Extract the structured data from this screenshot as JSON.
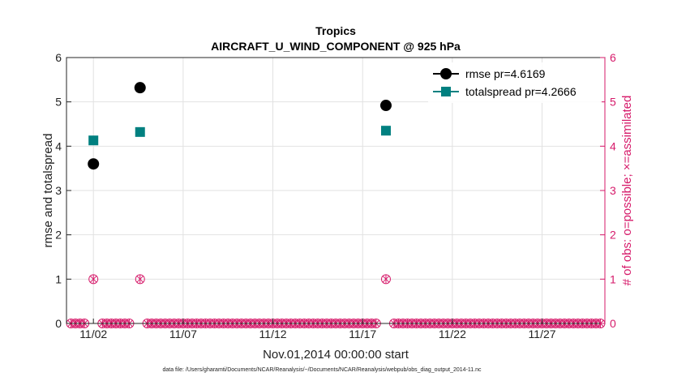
{
  "chart_data": {
    "type": "scatter",
    "title": "Tropics",
    "subtitle": "AIRCRAFT_U_WIND_COMPONENT @ 925 hPa",
    "xlabel": "Nov.01,2014 00:00:00 start",
    "ylabel": "rmse and totalspread",
    "ylabel_right": "# of obs: o=possible; ×=assimilated",
    "footer": "data file: /Users/gharamti/Documents/NCAR/Reanalysis/~/Documents/NCAR/Reanalysis/webpub/obs_diag_output_2014-11.nc",
    "xlim": [
      0.5,
      30.5
    ],
    "ylim": [
      0,
      6
    ],
    "ylim_right": [
      0,
      6
    ],
    "x_ticks": [
      {
        "value": 2,
        "label": "11/02"
      },
      {
        "value": 7,
        "label": "11/07"
      },
      {
        "value": 12,
        "label": "11/12"
      },
      {
        "value": 17,
        "label": "11/17"
      },
      {
        "value": 22,
        "label": "11/22"
      },
      {
        "value": 27,
        "label": "11/27"
      }
    ],
    "y_ticks": [
      "0",
      "1",
      "2",
      "3",
      "4",
      "5",
      "6"
    ],
    "y_ticks_right": [
      "0",
      "1",
      "2",
      "3",
      "4",
      "5",
      "6"
    ],
    "legend_position": "top-right",
    "series": [
      {
        "name": "rmse pr=4.6169",
        "marker": "circle",
        "color": "#000000",
        "x": [
          2.0,
          4.6,
          18.3
        ],
        "y": [
          3.6,
          5.32,
          4.92
        ]
      },
      {
        "name": "totalspread pr=4.2666",
        "marker": "square",
        "color": "#008080",
        "x": [
          2.0,
          4.6,
          18.3
        ],
        "y": [
          4.13,
          4.32,
          4.35
        ]
      }
    ],
    "obs_count": {
      "color": "#d61a6a",
      "possible_nonzero_x": [
        2.0,
        4.6,
        18.3
      ],
      "possible_nonzero_y": [
        1,
        1,
        1
      ],
      "zero_step_days": 0.25
    }
  }
}
